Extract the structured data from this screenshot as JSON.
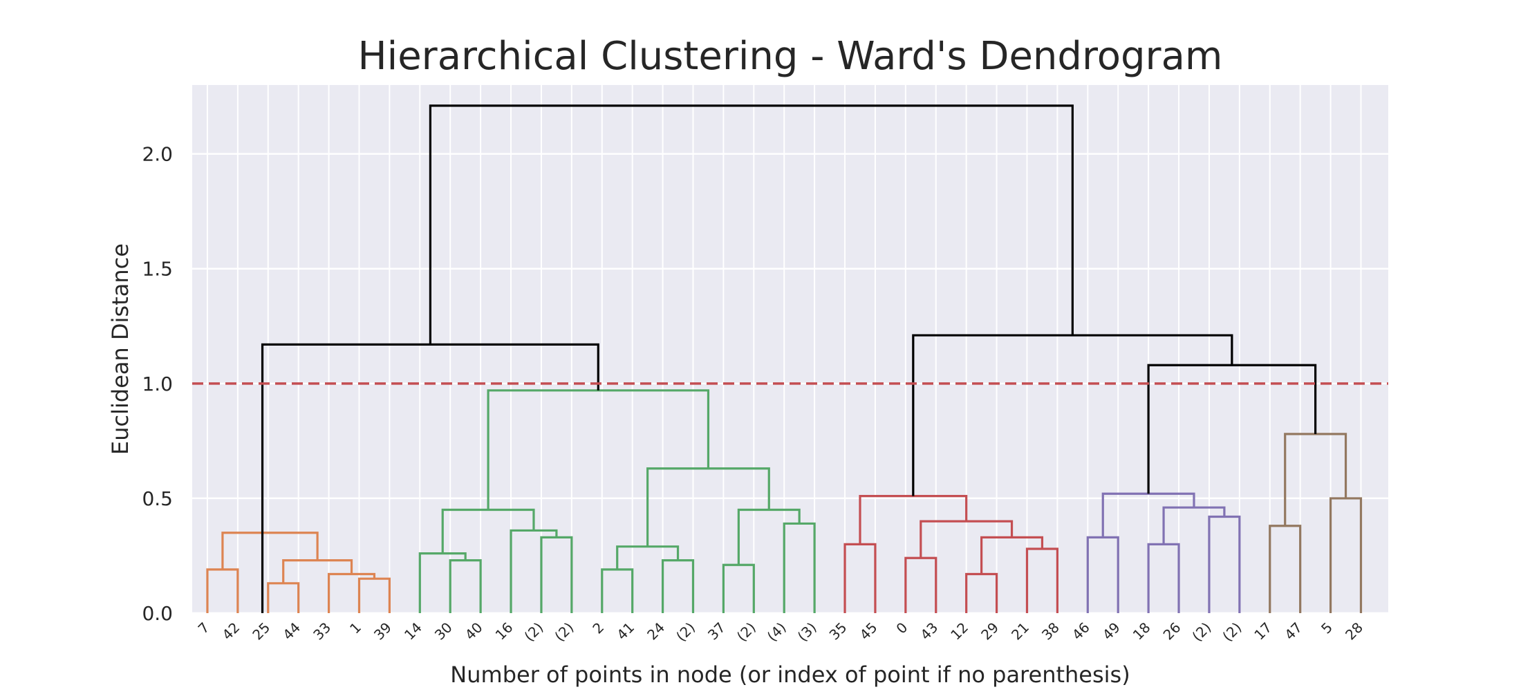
{
  "chart_data": {
    "type": "dendrogram",
    "title": "Hierarchical Clustering - Ward's Dendrogram",
    "xlabel": "Number of points in node (or index of point if no parenthesis)",
    "ylabel": "Euclidean Distance",
    "ylim": [
      0,
      2.3
    ],
    "yticks": [
      "0.0",
      "0.5",
      "1.0",
      "1.5",
      "2.0"
    ],
    "grid": true,
    "threshold": {
      "value": 1.0,
      "color": "#c44e52",
      "style": "dashed"
    },
    "leaf_labels": [
      "7",
      "42",
      "25",
      "44",
      "33",
      "1",
      "39",
      "14",
      "30",
      "40",
      "16",
      "(2)",
      "(2)",
      "2",
      "41",
      "24",
      "(2)",
      "37",
      "(2)",
      "(4)",
      "(3)",
      "35",
      "45",
      "0",
      "43",
      "12",
      "29",
      "21",
      "38",
      "46",
      "49",
      "18",
      "26",
      "(2)",
      "(2)",
      "17",
      "47",
      "5",
      "28"
    ],
    "links": [
      {
        "x": [
          0,
          1
        ],
        "y": 0.19,
        "color": "#dd8452"
      },
      {
        "x": [
          2,
          3
        ],
        "y": 0.13,
        "color": "#dd8452"
      },
      {
        "x": [
          5,
          6
        ],
        "y": 0.15,
        "color": "#dd8452"
      },
      {
        "x": [
          4,
          5.5
        ],
        "y": 0.17,
        "color": "#dd8452"
      },
      {
        "x": [
          2.5,
          4.75
        ],
        "y": 0.23,
        "color": "#dd8452"
      },
      {
        "x": [
          0.5,
          3.625
        ],
        "y": 0.35,
        "color": "#dd8452"
      },
      {
        "x": [
          8,
          9
        ],
        "y": 0.23,
        "color": "#55a868"
      },
      {
        "x": [
          7,
          8.5
        ],
        "y": 0.26,
        "color": "#55a868"
      },
      {
        "x": [
          11,
          12
        ],
        "y": 0.33,
        "color": "#55a868"
      },
      {
        "x": [
          10,
          11.5
        ],
        "y": 0.36,
        "color": "#55a868"
      },
      {
        "x": [
          7.75,
          10.75
        ],
        "y": 0.45,
        "color": "#55a868"
      },
      {
        "x": [
          13,
          14
        ],
        "y": 0.19,
        "color": "#55a868"
      },
      {
        "x": [
          15,
          16
        ],
        "y": 0.23,
        "color": "#55a868"
      },
      {
        "x": [
          13.5,
          15.5
        ],
        "y": 0.29,
        "color": "#55a868"
      },
      {
        "x": [
          17,
          18
        ],
        "y": 0.21,
        "color": "#55a868"
      },
      {
        "x": [
          19,
          20
        ],
        "y": 0.39,
        "color": "#55a868"
      },
      {
        "x": [
          17.5,
          19.5
        ],
        "y": 0.45,
        "color": "#55a868"
      },
      {
        "x": [
          14.5,
          18.5
        ],
        "y": 0.63,
        "color": "#55a868"
      },
      {
        "x": [
          9.25,
          16.5
        ],
        "y": 0.97,
        "color": "#55a868"
      },
      {
        "x": [
          21,
          22
        ],
        "y": 0.3,
        "color": "#c44e52"
      },
      {
        "x": [
          23,
          24
        ],
        "y": 0.24,
        "color": "#c44e52"
      },
      {
        "x": [
          25,
          26
        ],
        "y": 0.17,
        "color": "#c44e52"
      },
      {
        "x": [
          27,
          28
        ],
        "y": 0.28,
        "color": "#c44e52"
      },
      {
        "x": [
          25.5,
          27.5
        ],
        "y": 0.33,
        "color": "#c44e52"
      },
      {
        "x": [
          23.5,
          26.5
        ],
        "y": 0.4,
        "color": "#c44e52"
      },
      {
        "x": [
          21.5,
          25
        ],
        "y": 0.51,
        "color": "#c44e52"
      },
      {
        "x": [
          29,
          30
        ],
        "y": 0.33,
        "color": "#8172b3"
      },
      {
        "x": [
          31,
          32
        ],
        "y": 0.3,
        "color": "#8172b3"
      },
      {
        "x": [
          33,
          34
        ],
        "y": 0.42,
        "color": "#8172b3"
      },
      {
        "x": [
          31.5,
          33.5
        ],
        "y": 0.46,
        "color": "#8172b3"
      },
      {
        "x": [
          29.5,
          32.5
        ],
        "y": 0.52,
        "color": "#8172b3"
      },
      {
        "x": [
          35,
          36
        ],
        "y": 0.38,
        "color": "#937860"
      },
      {
        "x": [
          37,
          38
        ],
        "y": 0.5,
        "color": "#937860"
      },
      {
        "x": [
          35.5,
          37.5
        ],
        "y": 0.78,
        "color": "#937860"
      },
      {
        "x": [
          1.8125,
          12.875
        ],
        "y": 1.17,
        "color": "#000000"
      },
      {
        "x": [
          31,
          36.5
        ],
        "y": 1.08,
        "color": "#000000"
      },
      {
        "x": [
          23.25,
          33.75
        ],
        "y": 1.21,
        "color": "#000000"
      },
      {
        "x": [
          7.34375,
          28.5
        ],
        "y": 2.21,
        "color": "#000000"
      }
    ],
    "colors": {
      "background": "#eaeaf2",
      "grid": "#ffffff",
      "text": "#262626"
    }
  }
}
